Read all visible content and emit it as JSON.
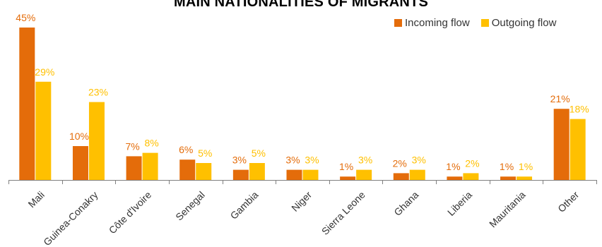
{
  "colors": {
    "incoming": "#E46C0A",
    "outgoing": "#FFC000",
    "axis": "#808080",
    "tick_text": "#333333"
  },
  "chart_data": {
    "type": "bar",
    "title": "MAIN NATIONALITIES OF MIGRANTS",
    "xlabel": "",
    "ylabel": "",
    "ylim": [
      0,
      50
    ],
    "grid": false,
    "legend_position": "top-right",
    "categories": [
      "Mali",
      "Guinea-Conakry",
      "Côte d'Ivoire",
      "Senegal",
      "Gambia",
      "Niger",
      "Sierra Leone",
      "Ghana",
      "Liberia",
      "Mauritania",
      "Other"
    ],
    "series": [
      {
        "name": "Incoming flow",
        "values": [
          45,
          10,
          7,
          6,
          3,
          3,
          1,
          2,
          1,
          1,
          21
        ],
        "labels": [
          "45%",
          "10%",
          "7%",
          "6%",
          "3%",
          "3%",
          "1%",
          "2%",
          "1%",
          "1%",
          "21%"
        ]
      },
      {
        "name": "Outgoing flow",
        "values": [
          29,
          23,
          8,
          5,
          5,
          3,
          3,
          3,
          2,
          1,
          18
        ],
        "labels": [
          "29%",
          "23%",
          "8%",
          "5%",
          "5%",
          "3%",
          "3%",
          "3%",
          "2%",
          "1%",
          "18%"
        ]
      }
    ]
  }
}
